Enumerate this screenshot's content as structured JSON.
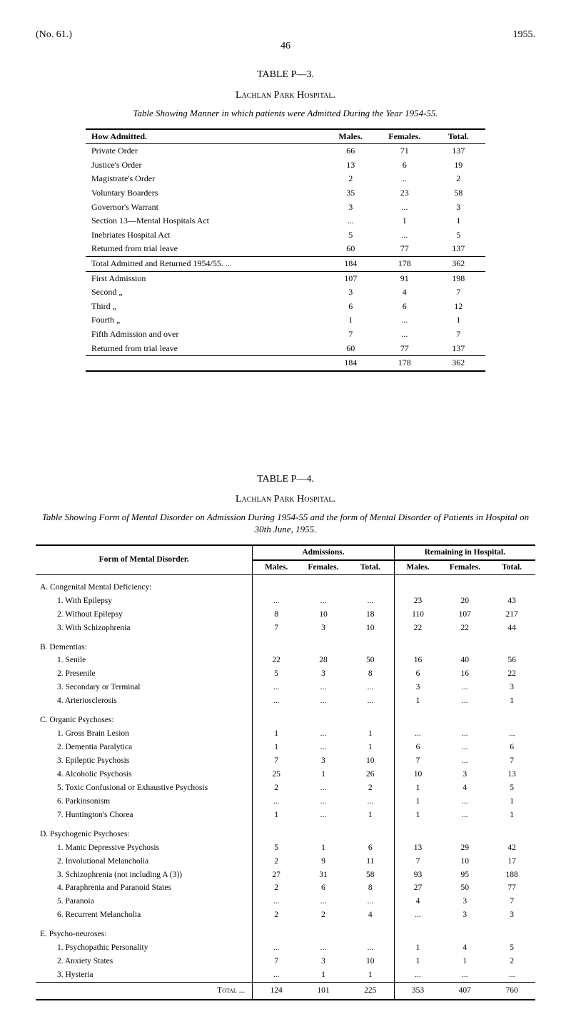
{
  "header": {
    "left": "(No. 61.)",
    "right": "1955.",
    "page": "46"
  },
  "tableP3": {
    "title": "TABLE P—3.",
    "hospital": "Lachlan Park Hospital.",
    "subtitle": "Table Showing Manner in which patients were Admitted During the Year 1954-55.",
    "columns": [
      "How Admitted.",
      "Males.",
      "Females.",
      "Total."
    ],
    "block1": [
      {
        "label": "Private Order",
        "m": "66",
        "f": "71",
        "t": "137"
      },
      {
        "label": "Justice's Order",
        "m": "13",
        "f": "6",
        "t": "19"
      },
      {
        "label": "Magistrate's Order",
        "m": "2",
        "f": "..",
        "t": "2"
      },
      {
        "label": "Voluntary Boarders",
        "m": "35",
        "f": "23",
        "t": "58"
      },
      {
        "label": "Governor's Warrant",
        "m": "3",
        "f": "...",
        "t": "3"
      },
      {
        "label": "Section 13—Mental Hospitals Act",
        "m": "...",
        "f": "1",
        "t": "1"
      },
      {
        "label": "Inebriates Hospital Act",
        "m": "5",
        "f": "...",
        "t": "5"
      },
      {
        "label": "Returned from trial leave",
        "m": "60",
        "f": "77",
        "t": "137"
      }
    ],
    "total1": {
      "label": "Total Admitted and Returned 1954/55. ...",
      "m": "184",
      "f": "178",
      "t": "362"
    },
    "block2": [
      {
        "label": "First Admission",
        "m": "107",
        "f": "91",
        "t": "198"
      },
      {
        "label": "Second     „",
        "m": "3",
        "f": "4",
        "t": "7"
      },
      {
        "label": "Third        „",
        "m": "6",
        "f": "6",
        "t": "12"
      },
      {
        "label": "Fourth      „",
        "m": "1",
        "f": "...",
        "t": "1"
      },
      {
        "label": "Fifth Admission and over",
        "m": "7",
        "f": "...",
        "t": "7"
      },
      {
        "label": "Returned from trial leave",
        "m": "60",
        "f": "77",
        "t": "137"
      }
    ],
    "total2": {
      "m": "184",
      "f": "178",
      "t": "362"
    }
  },
  "tableP4": {
    "title": "TABLE P—4.",
    "hospital": "Lachlan Park Hospital.",
    "subtitle": "Table Showing Form of Mental Disorder on Admission During 1954-55 and the form of Mental Disorder of Patients in Hospital on 30th June, 1955.",
    "formHeader": "Form of Mental Disorder.",
    "group1": "Admissions.",
    "group2": "Remaining in Hospital.",
    "sub": [
      "Males.",
      "Females.",
      "Total.",
      "Males.",
      "Females.",
      "Total."
    ],
    "sections": [
      {
        "head": "A. Congenital Mental Deficiency:",
        "rows": [
          {
            "label": "1. With Epilepsy",
            "v": [
              "...",
              "...",
              "...",
              "23",
              "20",
              "43"
            ]
          },
          {
            "label": "2. Without Epilepsy",
            "v": [
              "8",
              "10",
              "18",
              "110",
              "107",
              "217"
            ]
          },
          {
            "label": "3. With Schizophrenia",
            "v": [
              "7",
              "3",
              "10",
              "22",
              "22",
              "44"
            ]
          }
        ]
      },
      {
        "head": "B. Dementias:",
        "rows": [
          {
            "label": "1. Senile",
            "v": [
              "22",
              "28",
              "50",
              "16",
              "40",
              "56"
            ]
          },
          {
            "label": "2. Presenile",
            "v": [
              "5",
              "3",
              "8",
              "6",
              "16",
              "22"
            ]
          },
          {
            "label": "3. Secondary or Terminal",
            "v": [
              "...",
              "...",
              "...",
              "3",
              "...",
              "3"
            ]
          },
          {
            "label": "4. Arteriosclerosis",
            "v": [
              "...",
              "...",
              "...",
              "1",
              "...",
              "1"
            ]
          }
        ]
      },
      {
        "head": "C. Organic Psychoses:",
        "rows": [
          {
            "label": "1. Gross Brain Lesion",
            "v": [
              "1",
              "...",
              "1",
              "...",
              "...",
              "..."
            ]
          },
          {
            "label": "2. Dementia Paralytica",
            "v": [
              "1",
              "...",
              "1",
              "6",
              "...",
              "6"
            ]
          },
          {
            "label": "3. Epileptic Psychosis",
            "v": [
              "7",
              "3",
              "10",
              "7",
              "...",
              "7"
            ]
          },
          {
            "label": "4. Alcoholic Psychosis",
            "v": [
              "25",
              "1",
              "26",
              "10",
              "3",
              "13"
            ]
          },
          {
            "label": "5. Toxic Confusional or Exhaustive Psychosis",
            "v": [
              "2",
              "...",
              "2",
              "1",
              "4",
              "5"
            ]
          },
          {
            "label": "6. Parkinsonism",
            "v": [
              "...",
              "...",
              "...",
              "1",
              "...",
              "1"
            ]
          },
          {
            "label": "7. Huntington's Chorea",
            "v": [
              "1",
              "...",
              "1",
              "1",
              "...",
              "1"
            ]
          }
        ]
      },
      {
        "head": "D. Psychogenic Psychoses:",
        "rows": [
          {
            "label": "1. Manic Depressive Psychosis",
            "v": [
              "5",
              "1",
              "6",
              "13",
              "29",
              "42"
            ]
          },
          {
            "label": "2. Involutional Melancholia",
            "v": [
              "2",
              "9",
              "11",
              "7",
              "10",
              "17"
            ]
          },
          {
            "label": "3. Schizophrenia (not including A (3))",
            "v": [
              "27",
              "31",
              "58",
              "93",
              "95",
              "188"
            ]
          },
          {
            "label": "4. Paraphrenia and Paranoid States",
            "v": [
              "2",
              "6",
              "8",
              "27",
              "50",
              "77"
            ]
          },
          {
            "label": "5. Paranoia",
            "v": [
              "...",
              "...",
              "...",
              "4",
              "3",
              "7"
            ]
          },
          {
            "label": "6. Recurrent Melancholia",
            "v": [
              "2",
              "2",
              "4",
              "...",
              "3",
              "3"
            ]
          }
        ]
      },
      {
        "head": "E. Psycho-neuroses:",
        "rows": [
          {
            "label": "1. Psychopathic Personality",
            "v": [
              "...",
              "...",
              "...",
              "1",
              "4",
              "5"
            ]
          },
          {
            "label": "2. Anxiety States",
            "v": [
              "7",
              "3",
              "10",
              "1",
              "1",
              "2"
            ]
          },
          {
            "label": "3. Hysteria",
            "v": [
              "...",
              "1",
              "1",
              "...",
              "...",
              "..."
            ]
          }
        ]
      }
    ],
    "total": {
      "label": "Total ...",
      "v": [
        "124",
        "101",
        "225",
        "353",
        "407",
        "760"
      ]
    }
  }
}
